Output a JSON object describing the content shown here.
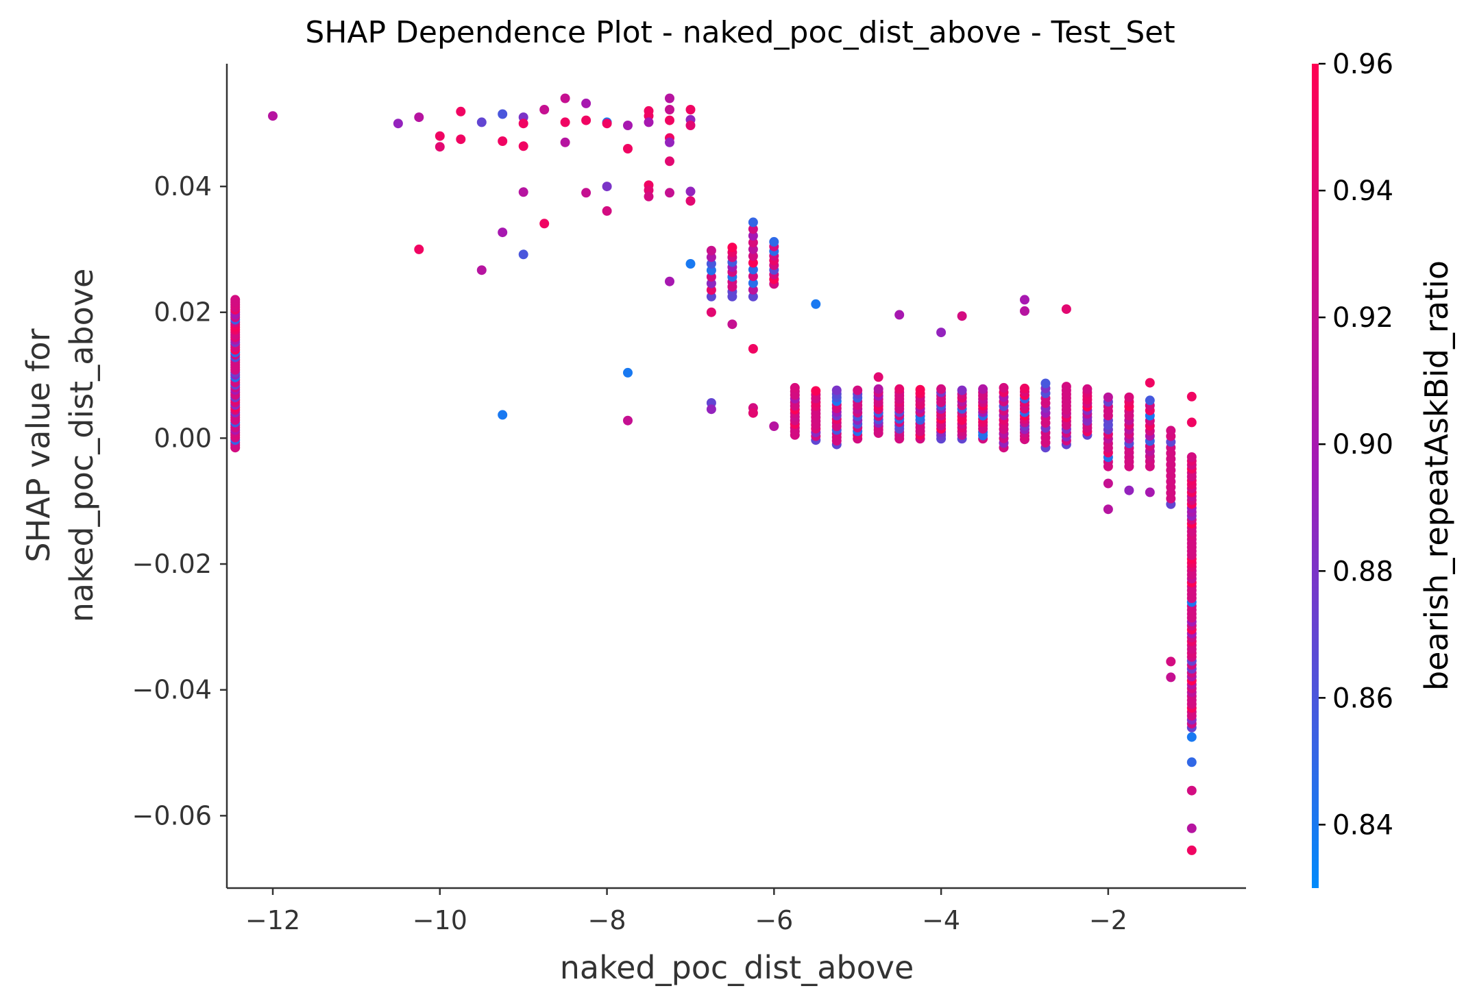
{
  "chart_data": {
    "type": "scatter",
    "title": "SHAP Dependence Plot - naked_poc_dist_above - Test_Set",
    "xlabel": "naked_poc_dist_above",
    "ylabel_line1": "SHAP value for",
    "ylabel_line2": "naked_poc_dist_above",
    "xlim": [
      -12.55,
      -0.35
    ],
    "ylim": [
      -0.0715,
      0.0595
    ],
    "xticks": [
      -12,
      -10,
      -8,
      -6,
      -4,
      -2
    ],
    "xtick_labels": [
      "−12",
      "−10",
      "−8",
      "−6",
      "−4",
      "−2"
    ],
    "yticks": [
      0.04,
      0.02,
      0.0,
      -0.02,
      -0.04,
      -0.06
    ],
    "ytick_labels": [
      "0.04",
      "0.02",
      "0.00",
      "−0.02",
      "−0.04",
      "−0.06"
    ],
    "colorbar": {
      "label": "bearish_repeatAskBid_ratio",
      "range": [
        0.83,
        0.96
      ],
      "ticks": [
        0.96,
        0.94,
        0.92,
        0.9,
        0.88,
        0.86,
        0.84
      ],
      "tick_labels": [
        "0.96",
        "0.94",
        "0.92",
        "0.90",
        "0.88",
        "0.86",
        "0.84"
      ],
      "color_low": "#008afb",
      "color_mid": "#a01ab8",
      "color_high": "#ff0052"
    },
    "points": [
      [
        -12.0,
        0.0512,
        0.91
      ],
      [
        -10.5,
        0.05,
        0.89
      ],
      [
        -10.25,
        0.051,
        0.91
      ],
      [
        -10.0,
        0.048,
        0.95
      ],
      [
        -10.0,
        0.0463,
        0.94
      ],
      [
        -9.75,
        0.0519,
        0.95
      ],
      [
        -9.75,
        0.0475,
        0.95
      ],
      [
        -9.5,
        0.0502,
        0.87
      ],
      [
        -9.25,
        0.0515,
        0.86
      ],
      [
        -9.25,
        0.0472,
        0.95
      ],
      [
        -9.0,
        0.051,
        0.88
      ],
      [
        -9.0,
        0.05,
        0.95
      ],
      [
        -9.0,
        0.0464,
        0.95
      ],
      [
        -8.75,
        0.0522,
        0.92
      ],
      [
        -8.5,
        0.054,
        0.92
      ],
      [
        -8.5,
        0.0502,
        0.95
      ],
      [
        -8.5,
        0.047,
        0.91
      ],
      [
        -8.25,
        0.0532,
        0.9
      ],
      [
        -8.25,
        0.0505,
        0.95
      ],
      [
        -8.0,
        0.0502,
        0.84
      ],
      [
        -8.0,
        0.05,
        0.95
      ],
      [
        -7.75,
        0.0497,
        0.9
      ],
      [
        -7.75,
        0.046,
        0.95
      ],
      [
        -7.5,
        0.052,
        0.95
      ],
      [
        -7.5,
        0.0512,
        0.95
      ],
      [
        -7.5,
        0.0502,
        0.9
      ],
      [
        -7.25,
        0.054,
        0.91
      ],
      [
        -7.25,
        0.0522,
        0.92
      ],
      [
        -7.25,
        0.0505,
        0.95
      ],
      [
        -7.25,
        0.0477,
        0.95
      ],
      [
        -7.25,
        0.047,
        0.89
      ],
      [
        -7.0,
        0.0522,
        0.95
      ],
      [
        -7.0,
        0.0506,
        0.89
      ],
      [
        -7.0,
        0.0497,
        0.94
      ],
      [
        -10.25,
        0.03,
        0.95
      ],
      [
        -9.5,
        0.0267,
        0.91
      ],
      [
        -9.25,
        0.0327,
        0.9
      ],
      [
        -9.0,
        0.0391,
        0.91
      ],
      [
        -9.0,
        0.0292,
        0.86
      ],
      [
        -8.75,
        0.0341,
        0.95
      ],
      [
        -8.25,
        0.039,
        0.92
      ],
      [
        -8.0,
        0.04,
        0.88
      ],
      [
        -8.0,
        0.0361,
        0.93
      ],
      [
        -7.5,
        0.0402,
        0.95
      ],
      [
        -7.5,
        0.0394,
        0.94
      ],
      [
        -7.5,
        0.0384,
        0.93
      ],
      [
        -7.25,
        0.044,
        0.94
      ],
      [
        -7.25,
        0.039,
        0.92
      ],
      [
        -7.25,
        0.0249,
        0.9
      ],
      [
        -7.0,
        0.0392,
        0.89
      ],
      [
        -7.0,
        0.0377,
        0.94
      ],
      [
        -7.0,
        0.0277,
        0.84
      ],
      [
        -9.25,
        0.0037,
        0.84
      ],
      [
        -7.75,
        0.0104,
        0.84
      ],
      [
        -7.75,
        0.0028,
        0.92
      ],
      [
        -6.75,
        0.0056,
        0.87
      ],
      [
        -6.75,
        0.0046,
        0.89
      ],
      [
        -6.25,
        0.0048,
        0.93
      ],
      [
        -6.25,
        0.004,
        0.94
      ],
      [
        -6.0,
        0.0019,
        0.91
      ],
      [
        -6.25,
        0.0142,
        0.95
      ],
      [
        -6.5,
        0.0181,
        0.92
      ],
      [
        -6.75,
        0.02,
        0.94
      ],
      [
        -5.5,
        0.0213,
        0.84
      ],
      [
        -4.5,
        0.0196,
        0.9
      ],
      [
        -4.0,
        0.0168,
        0.89
      ],
      [
        -3.75,
        0.0194,
        0.93
      ],
      [
        -3.0,
        0.022,
        0.9
      ],
      [
        -3.0,
        0.0202,
        0.91
      ],
      [
        -2.5,
        0.0205,
        0.94
      ],
      [
        -4.75,
        0.0097,
        0.94
      ],
      [
        -1.5,
        0.0088,
        0.95
      ],
      [
        -1.0,
        0.0066,
        0.95
      ],
      [
        -1.0,
        0.0025,
        0.95
      ],
      [
        -2.0,
        -0.0072,
        0.92
      ],
      [
        -2.0,
        -0.0113,
        0.91
      ],
      [
        -1.75,
        -0.0083,
        0.89
      ],
      [
        -1.5,
        -0.0086,
        0.9
      ],
      [
        -1.25,
        -0.0355,
        0.93
      ],
      [
        -1.25,
        -0.038,
        0.92
      ],
      [
        -1.0,
        -0.0475,
        0.84
      ],
      [
        -1.0,
        -0.0515,
        0.85
      ],
      [
        -1.0,
        -0.056,
        0.93
      ],
      [
        -1.0,
        -0.062,
        0.91
      ],
      [
        -1.0,
        -0.0655,
        0.95
      ]
    ],
    "columns": [
      {
        "x": -6.75,
        "y_min": 0.0225,
        "y_max": 0.0298,
        "n": 8,
        "seed": 3
      },
      {
        "x": -6.5,
        "y_min": 0.0225,
        "y_max": 0.0303,
        "n": 11,
        "seed": 5
      },
      {
        "x": -6.25,
        "y_min": 0.0225,
        "y_max": 0.0343,
        "n": 12,
        "seed": 7
      },
      {
        "x": -6.0,
        "y_min": 0.0245,
        "y_max": 0.0312,
        "n": 10,
        "seed": 9
      },
      {
        "x": -12.45,
        "y_min": -0.0015,
        "y_max": 0.022,
        "n": 60,
        "seed": 11
      },
      {
        "x": -5.75,
        "y_min": 0.0005,
        "y_max": 0.008,
        "n": 14,
        "seed": 13
      },
      {
        "x": -5.5,
        "y_min": -0.0003,
        "y_max": 0.0075,
        "n": 14,
        "seed": 15
      },
      {
        "x": -5.25,
        "y_min": -0.001,
        "y_max": 0.0076,
        "n": 16,
        "seed": 17
      },
      {
        "x": -5.0,
        "y_min": -0.0001,
        "y_max": 0.0076,
        "n": 14,
        "seed": 19
      },
      {
        "x": -4.75,
        "y_min": 0.0008,
        "y_max": 0.0078,
        "n": 14,
        "seed": 21
      },
      {
        "x": -4.5,
        "y_min": -0.0001,
        "y_max": 0.0078,
        "n": 16,
        "seed": 23
      },
      {
        "x": -4.25,
        "y_min": -0.0001,
        "y_max": 0.0077,
        "n": 14,
        "seed": 25
      },
      {
        "x": -4.0,
        "y_min": -0.0001,
        "y_max": 0.0078,
        "n": 16,
        "seed": 27
      },
      {
        "x": -3.75,
        "y_min": -0.0001,
        "y_max": 0.0076,
        "n": 14,
        "seed": 29
      },
      {
        "x": -3.5,
        "y_min": -0.0001,
        "y_max": 0.0078,
        "n": 16,
        "seed": 31
      },
      {
        "x": -3.25,
        "y_min": -0.0015,
        "y_max": 0.008,
        "n": 14,
        "seed": 33
      },
      {
        "x": -3.0,
        "y_min": -0.0002,
        "y_max": 0.0079,
        "n": 16,
        "seed": 35
      },
      {
        "x": -2.75,
        "y_min": -0.0015,
        "y_max": 0.0087,
        "n": 14,
        "seed": 37
      },
      {
        "x": -2.5,
        "y_min": -0.001,
        "y_max": 0.0082,
        "n": 16,
        "seed": 39
      },
      {
        "x": -2.25,
        "y_min": 0.0005,
        "y_max": 0.0078,
        "n": 14,
        "seed": 41
      },
      {
        "x": -2.0,
        "y_min": -0.0045,
        "y_max": 0.0065,
        "n": 16,
        "seed": 43
      },
      {
        "x": -1.75,
        "y_min": -0.0045,
        "y_max": 0.0065,
        "n": 16,
        "seed": 45
      },
      {
        "x": -1.5,
        "y_min": -0.0045,
        "y_max": 0.006,
        "n": 14,
        "seed": 47
      },
      {
        "x": -1.25,
        "y_min": -0.0105,
        "y_max": 0.0012,
        "n": 14,
        "seed": 49
      },
      {
        "x": -1.0,
        "y_min": -0.046,
        "y_max": -0.003,
        "n": 70,
        "seed": 51
      }
    ]
  }
}
